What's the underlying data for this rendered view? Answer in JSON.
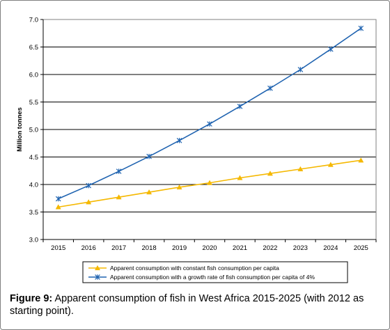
{
  "caption": {
    "label": "Figure 9:",
    "text": " Apparent consumption of fish in West Africa 2015-2025 (with 2012 as starting point)."
  },
  "chart_data": {
    "type": "line",
    "title": "",
    "xlabel": "",
    "ylabel": "Million tonnes",
    "x": [
      "2015",
      "2016",
      "2017",
      "2018",
      "2019",
      "2020",
      "2021",
      "2022",
      "2023",
      "2024",
      "2025"
    ],
    "ylim": [
      3.0,
      7.0
    ],
    "yticks": [
      "3.0",
      "3.5",
      "4.0",
      "4.5",
      "5.0",
      "5.5",
      "6.0",
      "6.5",
      "7.0"
    ],
    "grid": "horizontal",
    "legend_position": "bottom",
    "series": [
      {
        "name": "Apparent consumption with constant fish consumption per capita",
        "color": "#f5b800",
        "marker": "triangle",
        "values": [
          3.59,
          3.68,
          3.77,
          3.86,
          3.95,
          4.03,
          4.12,
          4.2,
          4.28,
          4.36,
          4.44
        ]
      },
      {
        "name": "Apparent consumption with a growth rate of fish consumption per capita of 4%",
        "color": "#1f63b0",
        "marker": "star",
        "values": [
          3.74,
          3.98,
          4.24,
          4.51,
          4.8,
          5.1,
          5.42,
          5.75,
          6.09,
          6.46,
          6.84
        ]
      }
    ]
  }
}
